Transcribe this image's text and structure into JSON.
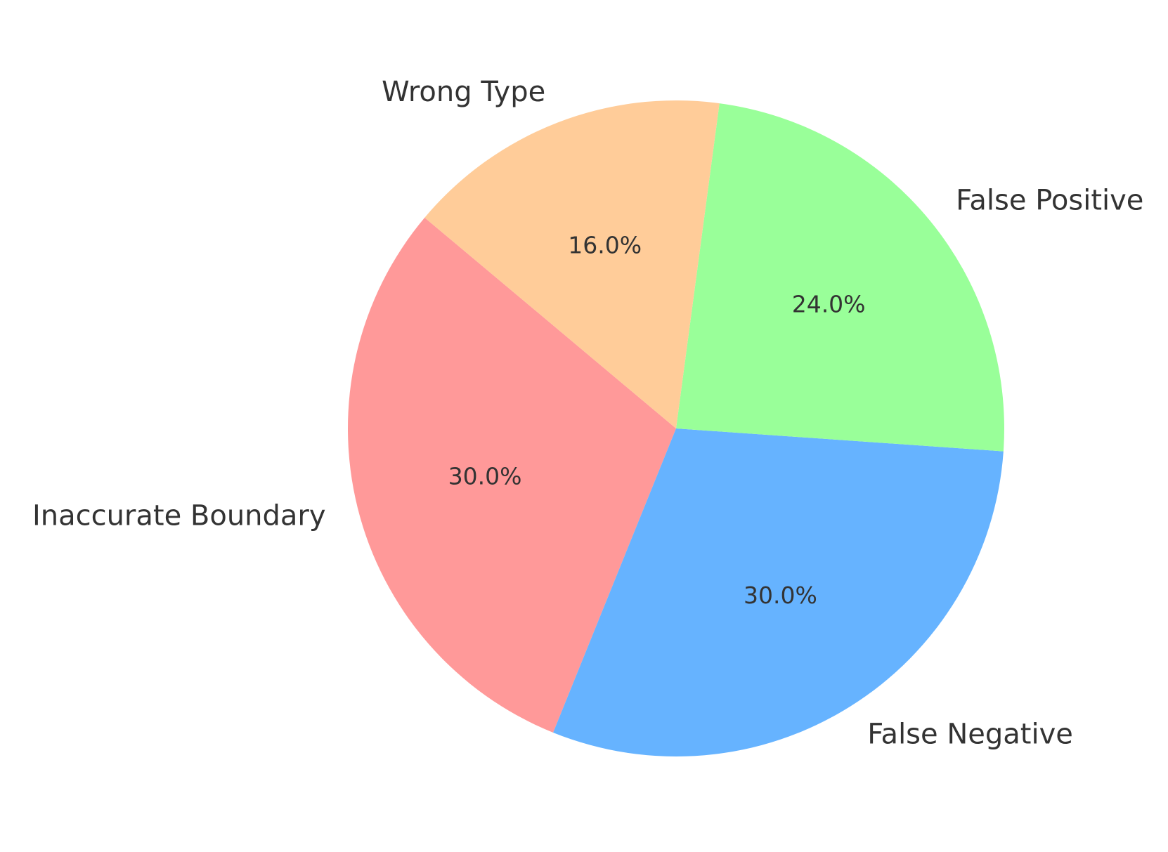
{
  "chart_data": {
    "type": "pie",
    "categories": [
      "Inaccurate Boundary",
      "False Negative",
      "False Positive",
      "Wrong Type"
    ],
    "values": [
      30.0,
      30.0,
      24.0,
      16.0
    ],
    "percent_labels": [
      "30.0%",
      "30.0%",
      "24.0%",
      "16.0%"
    ],
    "colors": [
      "#ff9999",
      "#66b3ff",
      "#99ff99",
      "#ffcc99"
    ],
    "start_angle_deg": 140,
    "direction": "counterclockwise",
    "title": "",
    "legend": "none"
  }
}
